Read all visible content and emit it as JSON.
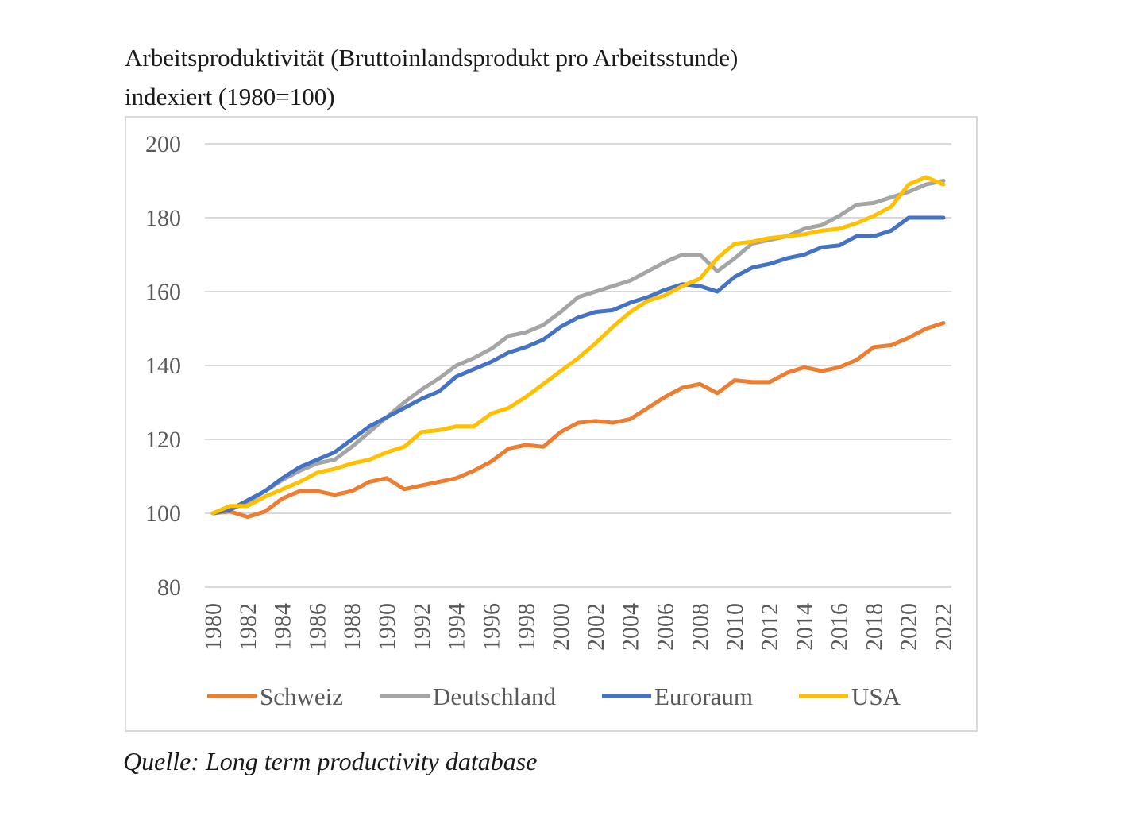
{
  "title_line1": "Arbeitsproduktivität (Bruttoinlandsprodukt pro Arbeitsstunde)",
  "title_line2": "indexiert (1980=100)",
  "source": "Quelle: Long term productivity database",
  "chart_data": {
    "type": "line",
    "title": "",
    "xlabel": "",
    "ylabel": "",
    "ylim": [
      80,
      200
    ],
    "yticks": [
      80,
      100,
      120,
      140,
      160,
      180,
      200
    ],
    "grid": true,
    "legend_position": "bottom",
    "x_tick_labels": [
      "1980",
      "1982",
      "1984",
      "1986",
      "1988",
      "1990",
      "1992",
      "1994",
      "1996",
      "1998",
      "2000",
      "2002",
      "2004",
      "2006",
      "2008",
      "2010",
      "2012",
      "2014",
      "2016",
      "2018",
      "2020",
      "2022"
    ],
    "x": [
      1980,
      1981,
      1982,
      1983,
      1984,
      1985,
      1986,
      1987,
      1988,
      1989,
      1990,
      1991,
      1992,
      1993,
      1994,
      1995,
      1996,
      1997,
      1998,
      1999,
      2000,
      2001,
      2002,
      2003,
      2004,
      2005,
      2006,
      2007,
      2008,
      2009,
      2010,
      2011,
      2012,
      2013,
      2014,
      2015,
      2016,
      2017,
      2018,
      2019,
      2020,
      2021,
      2022
    ],
    "series": [
      {
        "name": "Schweiz",
        "color": "#ed7d31",
        "values": [
          100,
          100.5,
          99,
          100.5,
          104,
          106,
          106,
          105,
          106,
          108.5,
          109.5,
          106.5,
          107.5,
          108.5,
          109.5,
          111.5,
          114,
          117.5,
          118.5,
          118,
          122,
          124.5,
          125,
          124.5,
          125.5,
          128.5,
          131.5,
          134,
          135,
          132.5,
          136,
          135.5,
          135.5,
          138,
          139.5,
          138.5,
          139.5,
          141.5,
          145,
          145.5,
          147.5,
          150,
          151.5
        ]
      },
      {
        "name": "Deutschland",
        "color": "#a5a5a5",
        "values": [
          100,
          101,
          103,
          106,
          109,
          111.5,
          113.5,
          114.5,
          118,
          122,
          126,
          130,
          133.5,
          136.5,
          140,
          142,
          144.5,
          148,
          149,
          151,
          154.5,
          158.5,
          160,
          161.5,
          163,
          165.5,
          168,
          170,
          170,
          165.5,
          169,
          173,
          174,
          175,
          177,
          178,
          180.5,
          183.5,
          184,
          185.5,
          187,
          189,
          190
        ]
      },
      {
        "name": "Euroraum",
        "color": "#4472c4",
        "values": [
          100,
          101,
          103.5,
          106,
          109.5,
          112.5,
          114.5,
          116.5,
          120,
          123.5,
          126,
          128.5,
          131,
          133,
          137,
          139,
          141,
          143.5,
          145,
          147,
          150.5,
          153,
          154.5,
          155,
          157,
          158.5,
          160.5,
          162,
          161.5,
          160,
          164,
          166.5,
          167.5,
          169,
          170,
          172,
          172.5,
          175,
          175,
          176.5,
          180,
          180,
          180
        ]
      },
      {
        "name": "USA",
        "color": "#ffc000",
        "values": [
          100,
          102,
          102,
          104.5,
          106.5,
          108.5,
          111,
          112,
          113.5,
          114.5,
          116.5,
          118,
          122,
          122.5,
          123.5,
          123.5,
          127,
          128.5,
          131.5,
          135,
          138.5,
          142,
          146,
          150.5,
          154.5,
          157.5,
          159,
          161.5,
          163.5,
          169,
          173,
          173.5,
          174.5,
          175,
          175.5,
          176.5,
          177,
          178.5,
          180.5,
          183,
          189,
          191,
          189
        ]
      }
    ]
  }
}
